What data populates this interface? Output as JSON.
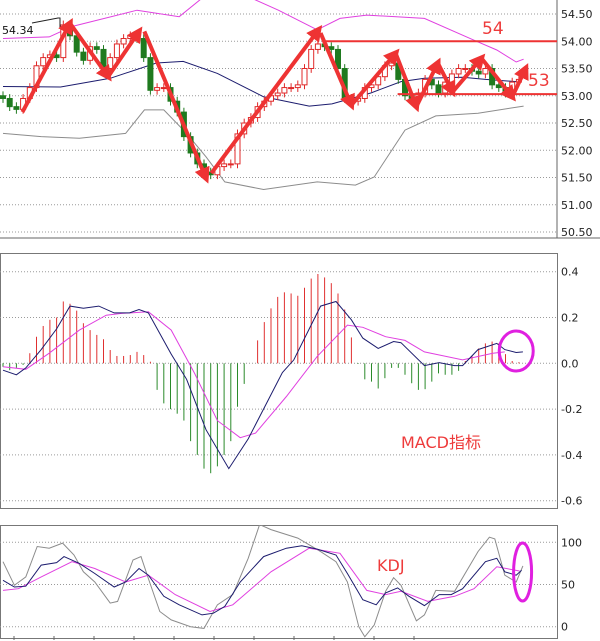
{
  "colors": {
    "bull": "#e02828",
    "bear": "#1f7a1f",
    "upper_band": "#e040e0",
    "middle_band": "#1c1c6e",
    "lower_band": "#8c8c8c",
    "arrow": "#ee3333",
    "dif": "#1c1c6e",
    "dea": "#e040e0",
    "hist_pos": "#e03030",
    "hist_neg": "#2a8a2a",
    "highlight": "#e020e0",
    "j_line": "#8c8c8c"
  },
  "chart_data": [
    {
      "type": "candlestick",
      "name": "price",
      "ylim": [
        50.5,
        54.5
      ],
      "yticks": [
        "54.50",
        "54.00",
        "53.50",
        "53.00",
        "52.50",
        "52.00",
        "51.50",
        "51.00",
        "50.50"
      ],
      "price_label": "54.34",
      "closes": [
        52.95,
        52.8,
        52.75,
        52.95,
        53.15,
        53.55,
        53.7,
        53.75,
        53.7,
        54.3,
        54.1,
        53.8,
        53.65,
        53.9,
        53.85,
        53.5,
        53.7,
        53.95,
        54.05,
        54.1,
        54.05,
        53.7,
        53.1,
        53.15,
        53.15,
        52.9,
        52.7,
        52.25,
        51.95,
        51.75,
        51.6,
        51.55,
        51.7,
        51.75,
        51.75,
        52.3,
        52.5,
        52.6,
        52.8,
        52.9,
        53.0,
        53.05,
        53.15,
        53.15,
        53.2,
        53.5,
        53.85,
        53.95,
        53.9,
        53.85,
        53.5,
        52.95,
        52.9,
        52.95,
        53.15,
        53.2,
        53.35,
        53.55,
        53.6,
        53.3,
        53.0,
        52.95,
        53.05,
        53.3,
        53.2,
        53.05,
        53.25,
        53.4,
        53.5,
        53.5,
        53.45,
        53.4,
        53.5,
        53.2,
        53.15,
        53.05,
        53.25,
        53.3
      ],
      "bands": {
        "upper": [
          [
            0,
            54.05
          ],
          [
            6.9,
            54.08
          ],
          [
            10.3,
            54.27
          ],
          [
            20,
            54.57
          ],
          [
            26.3,
            54.45
          ],
          [
            29.7,
            54.79
          ],
          [
            37.1,
            54.79
          ],
          [
            41.1,
            54.57
          ],
          [
            46.9,
            54.21
          ],
          [
            50.3,
            54.42
          ],
          [
            54.3,
            54.48
          ],
          [
            62.9,
            54.42
          ],
          [
            70.3,
            54.02
          ],
          [
            73.7,
            53.84
          ],
          [
            76.6,
            53.62
          ],
          [
            77.7,
            53.67
          ]
        ],
        "middle": [
          [
            0,
            53.17
          ],
          [
            8.6,
            53.16
          ],
          [
            16,
            53.32
          ],
          [
            22.9,
            53.6
          ],
          [
            26.9,
            53.63
          ],
          [
            32,
            53.41
          ],
          [
            38.9,
            52.98
          ],
          [
            45.7,
            52.81
          ],
          [
            49.1,
            52.85
          ],
          [
            54.9,
            53.05
          ],
          [
            59.4,
            53.26
          ],
          [
            62.9,
            53.32
          ],
          [
            68.6,
            53.34
          ],
          [
            72,
            53.3
          ],
          [
            76.6,
            53.26
          ]
        ],
        "lower": [
          [
            0,
            52.31
          ],
          [
            5.7,
            52.25
          ],
          [
            11.4,
            52.22
          ],
          [
            18.3,
            52.31
          ],
          [
            21.1,
            52.74
          ],
          [
            24,
            52.74
          ],
          [
            27.4,
            52.31
          ],
          [
            30.3,
            51.88
          ],
          [
            33.1,
            51.42
          ],
          [
            38.9,
            51.28
          ],
          [
            46.9,
            51.42
          ],
          [
            52.6,
            51.36
          ],
          [
            55.4,
            51.51
          ],
          [
            60,
            52.37
          ],
          [
            64.6,
            52.63
          ],
          [
            70.9,
            52.68
          ],
          [
            77.7,
            52.81
          ]
        ]
      },
      "arrows": [
        [
          [
            2.9,
            52.7
          ],
          [
            10,
            54.33
          ]
        ],
        [
          [
            10,
            54.33
          ],
          [
            15.7,
            53.35
          ]
        ],
        [
          [
            15.7,
            53.35
          ],
          [
            20.3,
            54.18
          ]
        ],
        [
          [
            21.1,
            54.18
          ],
          [
            30.3,
            51.49
          ]
        ],
        [
          [
            31.1,
            51.58
          ],
          [
            47.1,
            54.21
          ]
        ],
        [
          [
            47.4,
            54.15
          ],
          [
            52,
            52.83
          ]
        ],
        [
          [
            52,
            52.83
          ],
          [
            58.6,
            53.78
          ]
        ],
        [
          [
            58.6,
            53.78
          ],
          [
            61.7,
            52.8
          ]
        ],
        [
          [
            61.7,
            52.8
          ],
          [
            64.9,
            53.6
          ]
        ],
        [
          [
            64.9,
            53.6
          ],
          [
            67.1,
            53.07
          ]
        ],
        [
          [
            67.1,
            53.07
          ],
          [
            71.4,
            53.69
          ]
        ],
        [
          [
            71.4,
            53.69
          ],
          [
            76,
            52.98
          ]
        ],
        [
          [
            76,
            52.98
          ],
          [
            78,
            53.5
          ]
        ]
      ],
      "levels": [
        {
          "value": 54.0,
          "label": "54",
          "from_index": 48
        },
        {
          "value": 53.03,
          "label": "53",
          "from_index": 58.9
        }
      ]
    },
    {
      "type": "bar+line",
      "name": "MACD",
      "title": "MACD指标",
      "ylim": [
        -0.6,
        0.4
      ],
      "yticks": [
        "0.4",
        "0.2",
        "0.0",
        "-0.2",
        "-0.4",
        "-0.6"
      ],
      "histogram": [
        -0.015,
        -0.03,
        -0.02,
        -0.007,
        0.044,
        0.116,
        0.163,
        0.19,
        0.2,
        0.27,
        0.26,
        0.23,
        0.175,
        0.145,
        0.124,
        0.105,
        0.058,
        0.032,
        0.032,
        0.036,
        0.05,
        0.036,
        0.007,
        -0.116,
        -0.175,
        -0.2,
        -0.22,
        -0.25,
        -0.34,
        -0.4,
        -0.46,
        -0.48,
        -0.45,
        -0.4,
        -0.34,
        -0.19,
        -0.09,
        0,
        0.1,
        0.18,
        0.24,
        0.29,
        0.31,
        0.305,
        0.295,
        0.33,
        0.37,
        0.39,
        0.375,
        0.35,
        0.305,
        0.235,
        0.113,
        -0.003,
        -0.07,
        -0.08,
        -0.11,
        -0.065,
        -0.02,
        -0.02,
        -0.05,
        -0.087,
        -0.116,
        -0.113,
        -0.08,
        -0.044,
        -0.05,
        -0.05,
        -0.033,
        0.01,
        0.03,
        0.065,
        0.087,
        0.095,
        0.087,
        0.04,
        0.01,
        0.005
      ],
      "dif": [
        [
          0,
          -0.03
        ],
        [
          2,
          -0.05
        ],
        [
          3.4,
          -0.02
        ],
        [
          5.7,
          0.06
        ],
        [
          8,
          0.15
        ],
        [
          10,
          0.25
        ],
        [
          12,
          0.24
        ],
        [
          14.3,
          0.25
        ],
        [
          16.6,
          0.22
        ],
        [
          18.9,
          0.22
        ],
        [
          20.3,
          0.235
        ],
        [
          21.7,
          0.22
        ],
        [
          25.1,
          0.04
        ],
        [
          27.4,
          -0.07
        ],
        [
          30.3,
          -0.29
        ],
        [
          33.7,
          -0.46
        ],
        [
          36.6,
          -0.33
        ],
        [
          41.7,
          -0.04
        ],
        [
          43.4,
          0.015
        ],
        [
          47.4,
          0.25
        ],
        [
          49.7,
          0.27
        ],
        [
          52,
          0.19
        ],
        [
          53.7,
          0.11
        ],
        [
          56,
          0.065
        ],
        [
          58.3,
          0.095
        ],
        [
          59.4,
          0.09
        ],
        [
          62.9,
          -0.01
        ],
        [
          65.1,
          0.003
        ],
        [
          67.4,
          -0.01
        ],
        [
          68.6,
          -0.01
        ],
        [
          70.9,
          0.06
        ],
        [
          73.7,
          0.087
        ],
        [
          74.9,
          0.06
        ],
        [
          76.6,
          0.047
        ],
        [
          77.6,
          0.05
        ]
      ],
      "dea": [
        [
          0,
          -0.015
        ],
        [
          3.4,
          -0.026
        ],
        [
          6.9,
          0.044
        ],
        [
          11.4,
          0.145
        ],
        [
          15.4,
          0.21
        ],
        [
          17.7,
          0.218
        ],
        [
          21.7,
          0.225
        ],
        [
          25.1,
          0.145
        ],
        [
          28.6,
          -0.044
        ],
        [
          32,
          -0.25
        ],
        [
          35.4,
          -0.325
        ],
        [
          37.7,
          -0.305
        ],
        [
          42.3,
          -0.145
        ],
        [
          46.9,
          0.03
        ],
        [
          51.4,
          0.167
        ],
        [
          53.7,
          0.157
        ],
        [
          57.1,
          0.116
        ],
        [
          60,
          0.1
        ],
        [
          62.9,
          0.05
        ],
        [
          68.6,
          0.015
        ],
        [
          73.1,
          0.044
        ],
        [
          74.9,
          0.05
        ]
      ],
      "highlight_index": 76.6
    },
    {
      "type": "line",
      "name": "KDJ",
      "title": "KDJ",
      "ylim": [
        0,
        100
      ],
      "yticks": [
        "100",
        "50",
        "0"
      ],
      "k": [
        [
          0,
          55
        ],
        [
          1.7,
          47
        ],
        [
          3.4,
          48
        ],
        [
          5.7,
          73
        ],
        [
          8,
          76
        ],
        [
          9.1,
          83
        ],
        [
          11.4,
          75
        ],
        [
          13.7,
          63
        ],
        [
          16.6,
          47
        ],
        [
          18.3,
          53
        ],
        [
          20.3,
          69
        ],
        [
          21.7,
          61
        ],
        [
          24,
          36
        ],
        [
          26.3,
          26
        ],
        [
          29.7,
          14
        ],
        [
          31.4,
          16
        ],
        [
          33.1,
          24
        ],
        [
          35.4,
          53
        ],
        [
          38.9,
          83
        ],
        [
          42.3,
          93
        ],
        [
          44.6,
          96
        ],
        [
          46.9,
          92
        ],
        [
          49.7,
          85
        ],
        [
          51.4,
          63
        ],
        [
          53.7,
          32
        ],
        [
          55.7,
          26
        ],
        [
          57.1,
          40
        ],
        [
          58.9,
          46
        ],
        [
          60.6,
          36
        ],
        [
          62.9,
          25
        ],
        [
          65.1,
          38
        ],
        [
          66.9,
          38
        ],
        [
          68.6,
          45
        ],
        [
          72,
          77
        ],
        [
          73.7,
          81
        ],
        [
          74.9,
          65
        ],
        [
          76.6,
          61
        ],
        [
          77.4,
          67
        ]
      ],
      "d": [
        [
          0,
          43
        ],
        [
          2.3,
          45
        ],
        [
          5.7,
          59
        ],
        [
          10.3,
          77
        ],
        [
          13.7,
          69
        ],
        [
          18.3,
          53
        ],
        [
          21.7,
          61
        ],
        [
          25.7,
          38
        ],
        [
          30.9,
          18
        ],
        [
          34.3,
          26
        ],
        [
          40,
          65
        ],
        [
          45.7,
          93
        ],
        [
          50.3,
          87
        ],
        [
          54.3,
          43
        ],
        [
          57.1,
          38
        ],
        [
          59.4,
          42
        ],
        [
          63.4,
          30
        ],
        [
          67.4,
          36
        ],
        [
          70.3,
          45
        ],
        [
          73.7,
          71
        ],
        [
          77.1,
          66
        ]
      ],
      "j": [
        [
          0,
          77
        ],
        [
          1.7,
          49
        ],
        [
          3.4,
          59
        ],
        [
          5.1,
          95
        ],
        [
          6.9,
          93
        ],
        [
          8.9,
          99
        ],
        [
          10.6,
          85
        ],
        [
          12,
          65
        ],
        [
          13.7,
          53
        ],
        [
          16,
          28
        ],
        [
          17.1,
          30
        ],
        [
          19.4,
          79
        ],
        [
          20.6,
          83
        ],
        [
          21.7,
          57
        ],
        [
          23.4,
          18
        ],
        [
          25.1,
          8
        ],
        [
          28,
          0
        ],
        [
          30,
          -2
        ],
        [
          32,
          26
        ],
        [
          34.3,
          38
        ],
        [
          36.6,
          81
        ],
        [
          38.3,
          121
        ],
        [
          40,
          115
        ],
        [
          44,
          105
        ],
        [
          47.4,
          89
        ],
        [
          49.7,
          77
        ],
        [
          51.4,
          53
        ],
        [
          53.1,
          0
        ],
        [
          54,
          -12
        ],
        [
          55.4,
          2
        ],
        [
          57.1,
          42
        ],
        [
          58.3,
          58
        ],
        [
          59.4,
          49
        ],
        [
          61.7,
          7
        ],
        [
          62.9,
          14
        ],
        [
          64.6,
          43
        ],
        [
          67.4,
          42
        ],
        [
          70.9,
          89
        ],
        [
          72.6,
          106
        ],
        [
          73.4,
          104
        ],
        [
          74.9,
          61
        ],
        [
          76.6,
          53
        ],
        [
          77.6,
          72
        ]
      ],
      "highlight_index": 77.7
    }
  ]
}
